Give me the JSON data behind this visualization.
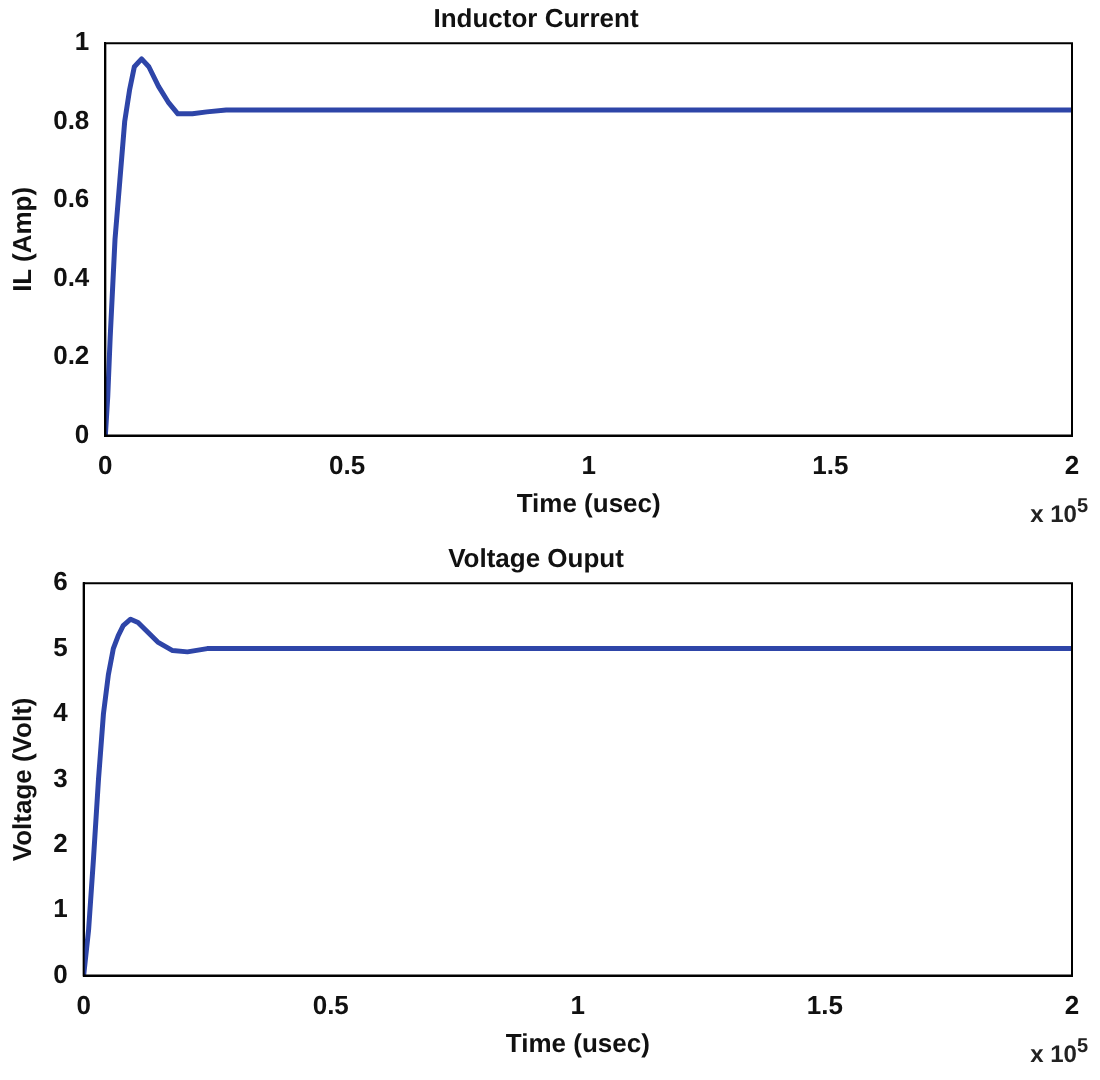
{
  "chart_data": [
    {
      "type": "line",
      "title": "Inductor Current",
      "xlabel": "Time (usec)",
      "ylabel": "IL (Amp)",
      "xlim": [
        0,
        2
      ],
      "xticks": [
        0,
        0.5,
        1,
        1.5,
        2
      ],
      "ylim": [
        0,
        1
      ],
      "yticks": [
        0,
        0.2,
        0.4,
        0.6,
        0.8,
        1
      ],
      "grid": false,
      "legend": false,
      "marker": "none",
      "line_style": "solid",
      "annotations": [
        "x 10$^{5}$"
      ],
      "series": [
        {
          "color": "#2e45a8",
          "x": [
            0,
            0.005,
            0.01,
            0.02,
            0.03,
            0.04,
            0.05,
            0.06,
            0.075,
            0.09,
            0.11,
            0.13,
            0.15,
            0.18,
            0.21,
            0.25,
            0.5,
            1,
            1.5,
            2
          ],
          "values": [
            0,
            0.1,
            0.25,
            0.5,
            0.65,
            0.8,
            0.88,
            0.94,
            0.96,
            0.94,
            0.89,
            0.85,
            0.82,
            0.82,
            0.825,
            0.83,
            0.83,
            0.83,
            0.83,
            0.83
          ]
        }
      ]
    },
    {
      "type": "line",
      "title": "Voltage Ouput",
      "xlabel": "Time (usec)",
      "ylabel": "Voltage (Volt)",
      "xlim": [
        0,
        2
      ],
      "xticks": [
        0,
        0.5,
        1,
        1.5,
        2
      ],
      "ylim": [
        0,
        6
      ],
      "yticks": [
        0,
        1,
        2,
        3,
        4,
        5,
        6
      ],
      "grid": false,
      "legend": false,
      "marker": "none",
      "line_style": "solid",
      "annotations": [
        "x 10$^{5}$"
      ],
      "series": [
        {
          "color": "#2e45a8",
          "x": [
            0,
            0.01,
            0.02,
            0.03,
            0.04,
            0.05,
            0.06,
            0.07,
            0.08,
            0.095,
            0.11,
            0.13,
            0.15,
            0.18,
            0.21,
            0.25,
            0.5,
            1,
            1.5,
            2
          ],
          "values": [
            0,
            0.7,
            1.8,
            3,
            4,
            4.6,
            5,
            5.2,
            5.35,
            5.45,
            5.4,
            5.25,
            5.1,
            4.97,
            4.95,
            5,
            5,
            5,
            5,
            5
          ]
        }
      ]
    }
  ]
}
